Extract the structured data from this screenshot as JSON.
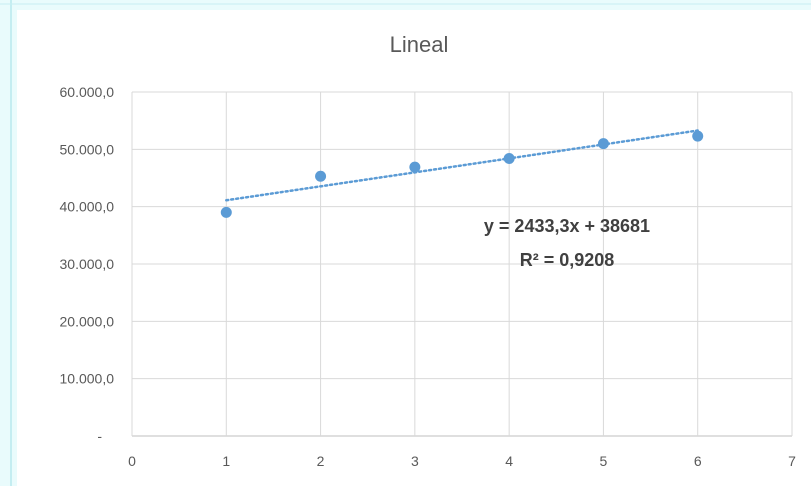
{
  "chart_data": {
    "type": "scatter",
    "title": "Lineal",
    "xlim": [
      0,
      7
    ],
    "ylim": [
      0,
      60000
    ],
    "x_ticks": [
      0,
      1,
      2,
      3,
      4,
      5,
      6,
      7
    ],
    "y_ticks": [
      {
        "value": 0,
        "label": "-"
      },
      {
        "value": 10000,
        "label": "10.000,0"
      },
      {
        "value": 20000,
        "label": "20.000,0"
      },
      {
        "value": 30000,
        "label": "30.000,0"
      },
      {
        "value": 40000,
        "label": "40.000,0"
      },
      {
        "value": 50000,
        "label": "50.000,0"
      },
      {
        "value": 60000,
        "label": "60.000,0"
      }
    ],
    "grid": true,
    "series": [
      {
        "x": [
          1,
          2,
          3,
          4,
          5,
          6
        ],
        "values": [
          39000,
          45300,
          46900,
          48400,
          51000,
          52300
        ],
        "color": "#5b9bd5"
      }
    ],
    "trendline": {
      "type": "linear",
      "slope": 2433.3,
      "intercept": 38681,
      "x_range": [
        1,
        6
      ],
      "color": "#5b9bd5",
      "style": "dotted"
    },
    "annotations": {
      "equation": "y = 2433,3x + 38681",
      "r_squared": "R² = 0,9208"
    }
  }
}
